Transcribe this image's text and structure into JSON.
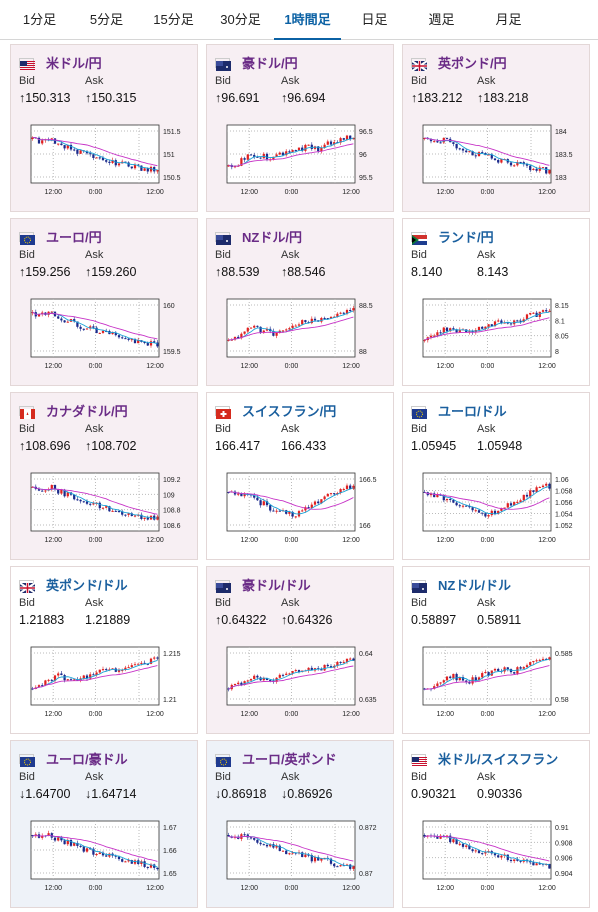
{
  "tabs": [
    {
      "label": "1分足",
      "active": false
    },
    {
      "label": "5分足",
      "active": false
    },
    {
      "label": "15分足",
      "active": false
    },
    {
      "label": "30分足",
      "active": false
    },
    {
      "label": "1時間足",
      "active": true
    },
    {
      "label": "日足",
      "active": false
    },
    {
      "label": "週足",
      "active": false
    },
    {
      "label": "月足",
      "active": false
    }
  ],
  "labels": {
    "bid": "Bid",
    "ask": "Ask"
  },
  "colors": {
    "accent": "#0b61a4",
    "up_candle": "#e02020",
    "down_candle": "#1b2a8c",
    "ma_short": "#1aa3d6",
    "ma_long": "#c733c7",
    "up_bg": "#f7eff3",
    "down_bg": "#eef2f8"
  },
  "pairs": [
    {
      "name": "米ドル/円",
      "flag": "us",
      "trend": "up",
      "bid": "↑150.313",
      "ask": "↑150.315",
      "chart": {
        "y_ticks": [
          "151.5",
          "151",
          "150.5"
        ],
        "x_ticks": [
          "12:00",
          "0:00",
          "12:00"
        ]
      }
    },
    {
      "name": "豪ドル/円",
      "flag": "au",
      "trend": "up",
      "bid": "↑96.691",
      "ask": "↑96.694",
      "chart": {
        "y_ticks": [
          "96.5",
          "96",
          "95.5"
        ],
        "x_ticks": [
          "12:00",
          "0:00",
          "12:00"
        ]
      }
    },
    {
      "name": "英ポンド/円",
      "flag": "gb",
      "trend": "up",
      "bid": "↑183.212",
      "ask": "↑183.218",
      "chart": {
        "y_ticks": [
          "184",
          "183.5",
          "183"
        ],
        "x_ticks": [
          "12:00",
          "0:00",
          "12:00"
        ]
      }
    },
    {
      "name": "ユーロ/円",
      "flag": "eu",
      "trend": "up",
      "bid": "↑159.256",
      "ask": "↑159.260",
      "chart": {
        "y_ticks": [
          "160",
          "159.5"
        ],
        "x_ticks": [
          "12:00",
          "0:00",
          "12:00"
        ]
      }
    },
    {
      "name": "NZドル/円",
      "flag": "nz",
      "trend": "up",
      "bid": "↑88.539",
      "ask": "↑88.546",
      "chart": {
        "y_ticks": [
          "88.5",
          "88"
        ],
        "x_ticks": [
          "12:00",
          "0:00",
          "12:00"
        ]
      }
    },
    {
      "name": "ランド/円",
      "flag": "za",
      "trend": "neutral",
      "bid": "8.140",
      "ask": "8.143",
      "chart": {
        "y_ticks": [
          "8.15",
          "8.1",
          "8.05",
          "8"
        ],
        "x_ticks": [
          "12:00",
          "0:00",
          "12:00"
        ]
      }
    },
    {
      "name": "カナダドル/円",
      "flag": "ca",
      "trend": "up",
      "bid": "↑108.696",
      "ask": "↑108.702",
      "chart": {
        "y_ticks": [
          "109.2",
          "109",
          "108.8",
          "108.6"
        ],
        "x_ticks": [
          "12:00",
          "0:00",
          "12:00"
        ]
      }
    },
    {
      "name": "スイスフラン/円",
      "flag": "ch",
      "trend": "neutral",
      "bid": "166.417",
      "ask": "166.433",
      "chart": {
        "y_ticks": [
          "166.5",
          "166"
        ],
        "x_ticks": [
          "12:00",
          "0:00",
          "12:00"
        ]
      }
    },
    {
      "name": "ユーロ/ドル",
      "flag": "eu",
      "trend": "neutral",
      "bid": "1.05945",
      "ask": "1.05948",
      "chart": {
        "y_ticks": [
          "1.06",
          "1.058",
          "1.056",
          "1.054",
          "1.052"
        ],
        "x_ticks": [
          "12:00",
          "0:00",
          "12:00"
        ]
      }
    },
    {
      "name": "英ポンド/ドル",
      "flag": "gb",
      "trend": "neutral",
      "bid": "1.21883",
      "ask": "1.21889",
      "chart": {
        "y_ticks": [
          "1.215",
          "1.21"
        ],
        "x_ticks": [
          "12:00",
          "0:00",
          "12:00"
        ]
      }
    },
    {
      "name": "豪ドル/ドル",
      "flag": "au",
      "trend": "up",
      "bid": "↑0.64322",
      "ask": "↑0.64326",
      "chart": {
        "y_ticks": [
          "0.64",
          "0.635"
        ],
        "x_ticks": [
          "12:00",
          "0:00",
          "12:00"
        ]
      }
    },
    {
      "name": "NZドル/ドル",
      "flag": "nz",
      "trend": "neutral",
      "bid": "0.58897",
      "ask": "0.58911",
      "chart": {
        "y_ticks": [
          "0.585",
          "0.58"
        ],
        "x_ticks": [
          "12:00",
          "0:00",
          "12:00"
        ]
      }
    },
    {
      "name": "ユーロ/豪ドル",
      "flag": "eu",
      "trend": "down",
      "bid": "↓1.64700",
      "ask": "↓1.64714",
      "chart": {
        "y_ticks": [
          "1.67",
          "1.66",
          "1.65"
        ],
        "x_ticks": [
          "12:00",
          "0:00",
          "12:00"
        ]
      }
    },
    {
      "name": "ユーロ/英ポンド",
      "flag": "eu",
      "trend": "down",
      "bid": "↓0.86918",
      "ask": "↓0.86926",
      "chart": {
        "y_ticks": [
          "0.872",
          "0.87"
        ],
        "x_ticks": [
          "12:00",
          "0:00",
          "12:00"
        ]
      }
    },
    {
      "name": "米ドル/スイスフラン",
      "flag": "us",
      "trend": "neutral",
      "bid": "0.90321",
      "ask": "0.90336",
      "chart": {
        "y_ticks": [
          "0.91",
          "0.908",
          "0.906",
          "0.904"
        ],
        "x_ticks": [
          "12:00",
          "0:00",
          "12:00"
        ]
      }
    }
  ]
}
